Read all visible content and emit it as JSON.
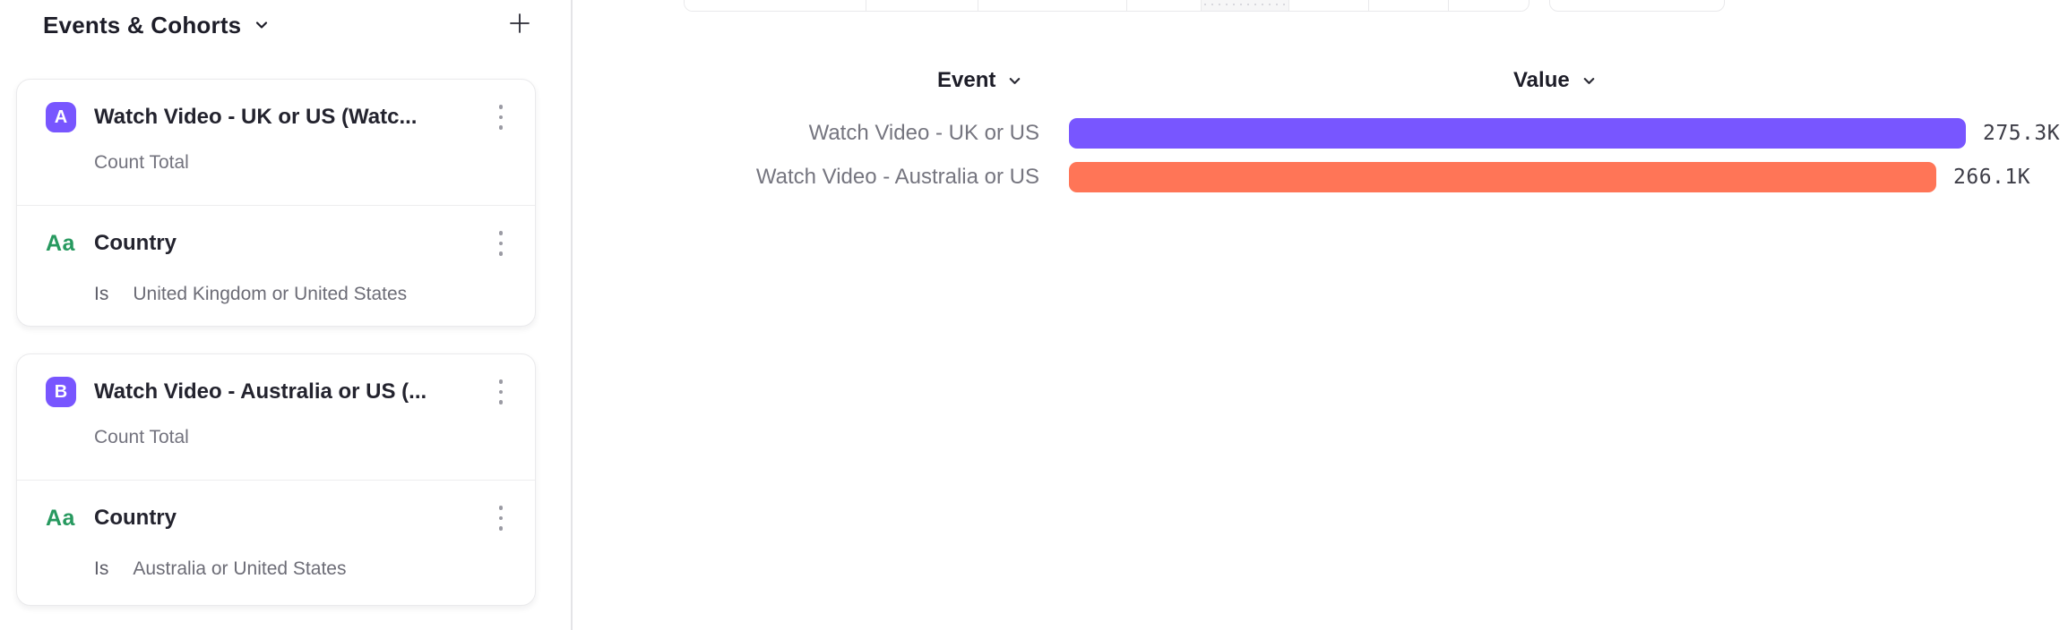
{
  "sidebar": {
    "title": "Events & Cohorts",
    "cards": [
      {
        "badge": "A",
        "title": "Watch Video - UK or US (Watc...",
        "measure": "Count Total",
        "property": {
          "type_icon": "Aa",
          "name": "Country",
          "operator": "Is",
          "value": "United Kingdom or United States"
        }
      },
      {
        "badge": "B",
        "title": "Watch Video - Australia or US (...",
        "measure": "Count Total",
        "property": {
          "type_icon": "Aa",
          "name": "Country",
          "operator": "Is",
          "value": "Australia or United States"
        }
      }
    ]
  },
  "chart_data": {
    "type": "bar",
    "orientation": "horizontal",
    "title": "",
    "columns": {
      "event": "Event",
      "value": "Value"
    },
    "categories": [
      "Watch Video - UK or US",
      "Watch Video - Australia or US"
    ],
    "values": [
      275300,
      266100
    ],
    "value_labels": [
      "275.3K",
      "266.1K"
    ],
    "series_colors": [
      "#7856FF",
      "#FF7557"
    ],
    "xlim": [
      0,
      280000
    ],
    "grid": false,
    "legend": false
  },
  "colors": {
    "accent_purple": "#7856FF",
    "accent_orange": "#FF7557",
    "property_green": "#27995F",
    "badge_bg": "#7856FF",
    "divider": "#E4E4E7"
  },
  "icons": {
    "title_dropdown": "chevron-down-icon",
    "add": "plus-icon",
    "card_menu": "kebab-icon",
    "column_dropdown": "chevron-down-icon"
  }
}
